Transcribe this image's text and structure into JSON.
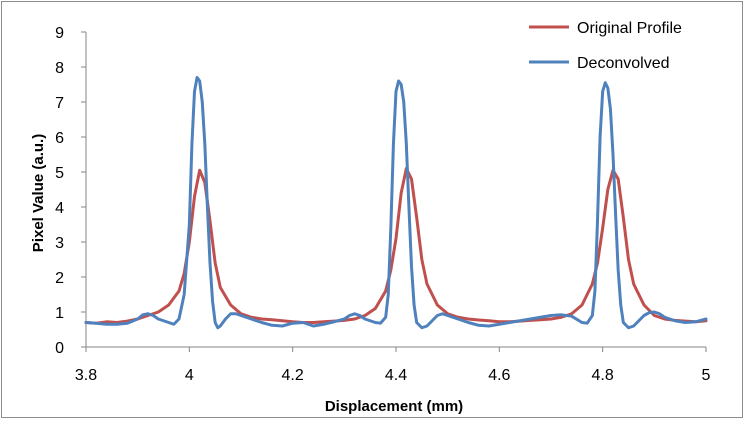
{
  "chart_data": {
    "type": "line",
    "xlabel": "Displacement (mm)",
    "ylabel": "Pixel Value (a.u.)",
    "xlim": [
      3.8,
      5.0
    ],
    "ylim": [
      0,
      9
    ],
    "x_ticks": [
      "3.8",
      "4",
      "4.2",
      "4.4",
      "4.6",
      "4.8",
      "5"
    ],
    "y_ticks": [
      "0",
      "1",
      "2",
      "3",
      "4",
      "5",
      "6",
      "7",
      "8",
      "9"
    ],
    "grid": false,
    "legend_position": "top-right",
    "series": [
      {
        "name": "Original Profile",
        "color": "#c0504d",
        "points": [
          [
            3.8,
            0.7
          ],
          [
            3.82,
            0.68
          ],
          [
            3.84,
            0.72
          ],
          [
            3.86,
            0.7
          ],
          [
            3.88,
            0.74
          ],
          [
            3.9,
            0.8
          ],
          [
            3.92,
            0.9
          ],
          [
            3.94,
            1.0
          ],
          [
            3.96,
            1.2
          ],
          [
            3.98,
            1.6
          ],
          [
            3.99,
            2.1
          ],
          [
            4.0,
            3.0
          ],
          [
            4.01,
            4.3
          ],
          [
            4.02,
            5.05
          ],
          [
            4.03,
            4.7
          ],
          [
            4.04,
            3.6
          ],
          [
            4.05,
            2.4
          ],
          [
            4.06,
            1.7
          ],
          [
            4.08,
            1.2
          ],
          [
            4.1,
            0.95
          ],
          [
            4.12,
            0.85
          ],
          [
            4.14,
            0.8
          ],
          [
            4.16,
            0.78
          ],
          [
            4.18,
            0.75
          ],
          [
            4.2,
            0.72
          ],
          [
            4.22,
            0.7
          ],
          [
            4.24,
            0.7
          ],
          [
            4.26,
            0.72
          ],
          [
            4.28,
            0.74
          ],
          [
            4.3,
            0.76
          ],
          [
            4.32,
            0.8
          ],
          [
            4.34,
            0.9
          ],
          [
            4.36,
            1.1
          ],
          [
            4.38,
            1.6
          ],
          [
            4.39,
            2.2
          ],
          [
            4.4,
            3.1
          ],
          [
            4.41,
            4.4
          ],
          [
            4.42,
            5.1
          ],
          [
            4.43,
            4.8
          ],
          [
            4.44,
            3.7
          ],
          [
            4.45,
            2.5
          ],
          [
            4.46,
            1.8
          ],
          [
            4.48,
            1.2
          ],
          [
            4.5,
            0.95
          ],
          [
            4.52,
            0.85
          ],
          [
            4.54,
            0.8
          ],
          [
            4.56,
            0.77
          ],
          [
            4.58,
            0.75
          ],
          [
            4.6,
            0.72
          ],
          [
            4.62,
            0.72
          ],
          [
            4.64,
            0.74
          ],
          [
            4.66,
            0.76
          ],
          [
            4.68,
            0.78
          ],
          [
            4.7,
            0.8
          ],
          [
            4.72,
            0.85
          ],
          [
            4.74,
            0.95
          ],
          [
            4.76,
            1.2
          ],
          [
            4.78,
            1.8
          ],
          [
            4.79,
            2.4
          ],
          [
            4.8,
            3.4
          ],
          [
            4.81,
            4.5
          ],
          [
            4.82,
            5.05
          ],
          [
            4.83,
            4.8
          ],
          [
            4.84,
            3.7
          ],
          [
            4.85,
            2.5
          ],
          [
            4.86,
            1.8
          ],
          [
            4.88,
            1.2
          ],
          [
            4.9,
            0.9
          ],
          [
            4.92,
            0.8
          ],
          [
            4.94,
            0.76
          ],
          [
            4.96,
            0.74
          ],
          [
            4.98,
            0.72
          ],
          [
            5.0,
            0.75
          ]
        ]
      },
      {
        "name": "Deconvolved",
        "color": "#4f81bd",
        "points": [
          [
            3.8,
            0.7
          ],
          [
            3.82,
            0.68
          ],
          [
            3.84,
            0.65
          ],
          [
            3.86,
            0.65
          ],
          [
            3.88,
            0.68
          ],
          [
            3.9,
            0.8
          ],
          [
            3.91,
            0.92
          ],
          [
            3.92,
            0.95
          ],
          [
            3.93,
            0.9
          ],
          [
            3.94,
            0.8
          ],
          [
            3.96,
            0.7
          ],
          [
            3.97,
            0.65
          ],
          [
            3.98,
            0.8
          ],
          [
            3.99,
            1.5
          ],
          [
            4.0,
            3.5
          ],
          [
            4.005,
            5.8
          ],
          [
            4.01,
            7.3
          ],
          [
            4.015,
            7.7
          ],
          [
            4.02,
            7.6
          ],
          [
            4.025,
            7.0
          ],
          [
            4.03,
            5.8
          ],
          [
            4.035,
            4.0
          ],
          [
            4.04,
            2.4
          ],
          [
            4.045,
            1.3
          ],
          [
            4.05,
            0.7
          ],
          [
            4.055,
            0.55
          ],
          [
            4.06,
            0.6
          ],
          [
            4.07,
            0.8
          ],
          [
            4.08,
            0.95
          ],
          [
            4.09,
            0.95
          ],
          [
            4.1,
            0.9
          ],
          [
            4.12,
            0.8
          ],
          [
            4.14,
            0.7
          ],
          [
            4.16,
            0.62
          ],
          [
            4.18,
            0.6
          ],
          [
            4.2,
            0.68
          ],
          [
            4.22,
            0.7
          ],
          [
            4.24,
            0.6
          ],
          [
            4.26,
            0.65
          ],
          [
            4.28,
            0.72
          ],
          [
            4.3,
            0.8
          ],
          [
            4.31,
            0.9
          ],
          [
            4.32,
            0.95
          ],
          [
            4.33,
            0.9
          ],
          [
            4.34,
            0.8
          ],
          [
            4.36,
            0.7
          ],
          [
            4.37,
            0.68
          ],
          [
            4.38,
            0.85
          ],
          [
            4.385,
            1.5
          ],
          [
            4.39,
            3.4
          ],
          [
            4.395,
            5.8
          ],
          [
            4.4,
            7.3
          ],
          [
            4.405,
            7.6
          ],
          [
            4.41,
            7.5
          ],
          [
            4.415,
            7.0
          ],
          [
            4.42,
            5.8
          ],
          [
            4.425,
            4.0
          ],
          [
            4.43,
            2.3
          ],
          [
            4.435,
            1.2
          ],
          [
            4.44,
            0.7
          ],
          [
            4.45,
            0.55
          ],
          [
            4.46,
            0.6
          ],
          [
            4.47,
            0.75
          ],
          [
            4.48,
            0.9
          ],
          [
            4.49,
            0.95
          ],
          [
            4.5,
            0.9
          ],
          [
            4.52,
            0.8
          ],
          [
            4.54,
            0.7
          ],
          [
            4.56,
            0.62
          ],
          [
            4.58,
            0.6
          ],
          [
            4.6,
            0.65
          ],
          [
            4.62,
            0.7
          ],
          [
            4.64,
            0.75
          ],
          [
            4.66,
            0.8
          ],
          [
            4.68,
            0.85
          ],
          [
            4.7,
            0.9
          ],
          [
            4.72,
            0.92
          ],
          [
            4.74,
            0.88
          ],
          [
            4.76,
            0.7
          ],
          [
            4.77,
            0.68
          ],
          [
            4.78,
            0.9
          ],
          [
            4.785,
            1.6
          ],
          [
            4.79,
            3.6
          ],
          [
            4.795,
            6.0
          ],
          [
            4.8,
            7.3
          ],
          [
            4.805,
            7.55
          ],
          [
            4.81,
            7.4
          ],
          [
            4.815,
            6.8
          ],
          [
            4.82,
            5.5
          ],
          [
            4.825,
            3.8
          ],
          [
            4.83,
            2.2
          ],
          [
            4.835,
            1.2
          ],
          [
            4.84,
            0.7
          ],
          [
            4.85,
            0.55
          ],
          [
            4.86,
            0.6
          ],
          [
            4.87,
            0.75
          ],
          [
            4.88,
            0.9
          ],
          [
            4.89,
            0.98
          ],
          [
            4.9,
            1.0
          ],
          [
            4.91,
            0.95
          ],
          [
            4.92,
            0.85
          ],
          [
            4.94,
            0.75
          ],
          [
            4.96,
            0.7
          ],
          [
            4.98,
            0.72
          ],
          [
            5.0,
            0.8
          ]
        ]
      }
    ]
  }
}
